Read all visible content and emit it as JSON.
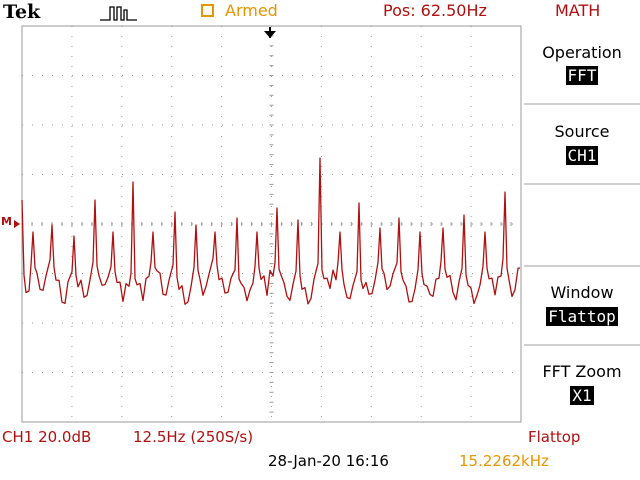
{
  "header": {
    "brand": "Tek",
    "trigger_state": "Armed",
    "position": "Pos: 62.50Hz",
    "menu_title": "MATH"
  },
  "marker": {
    "math_ref": "M"
  },
  "side_menu": {
    "items": [
      {
        "label": "Operation",
        "value": "FFT"
      },
      {
        "label": "Source",
        "value": "CH1"
      },
      {
        "label": "",
        "value": ""
      },
      {
        "label": "Window",
        "value": "Flattop"
      },
      {
        "label": "FFT Zoom",
        "value": "X1"
      }
    ]
  },
  "footer": {
    "channel_scale": "CH1 20.0dB",
    "horizontal_scale": "12.5Hz (250S/s)",
    "window_name": "Flattop",
    "datetime": "28-Jan-20 16:16",
    "trigger_freq": "15.2262kHz"
  },
  "colors": {
    "trace": "#b01010",
    "accent_orange": "#e69500",
    "grid": "#9a9a9a"
  }
}
